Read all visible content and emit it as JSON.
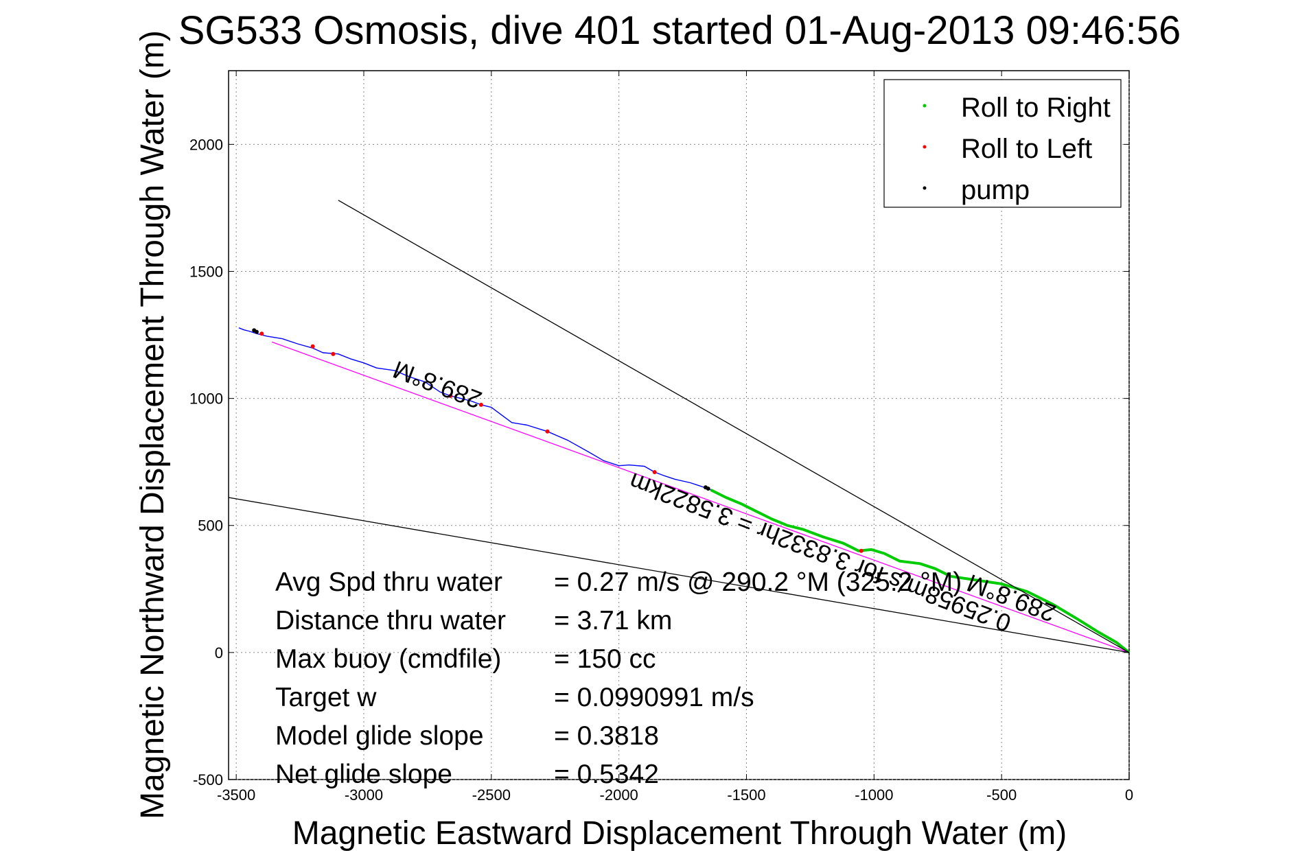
{
  "chart_data": {
    "type": "line",
    "title": "SG533 Osmosis, dive 401 started 01-Aug-2013 09:46:56",
    "xlabel": "Magnetic Eastward Displacement Through Water (m)",
    "ylabel": "Magnetic Northward Displacement Through Water (m)",
    "xlim": [
      -3530,
      0
    ],
    "ylim": [
      -500,
      2290
    ],
    "xticks": [
      -3500,
      -3000,
      -2500,
      -2000,
      -1500,
      -1000,
      -500,
      0
    ],
    "yticks": [
      -500,
      0,
      500,
      1000,
      1500,
      2000
    ],
    "xtick_labels": [
      "-3500",
      "-3000",
      "-2500",
      "-2000",
      "-1500",
      "-1000",
      "-500",
      "0"
    ],
    "ytick_labels": [
      "-500",
      "0",
      "500",
      "1000",
      "1500",
      "2000"
    ],
    "grid": true,
    "legend_position": "top-right",
    "legend": [
      {
        "label": "Roll to Right",
        "color": "#00cc00"
      },
      {
        "label": "Roll to Left",
        "color": "#ff0000"
      },
      {
        "label": "pump",
        "color": "#000000"
      }
    ],
    "series": [
      {
        "color": "#0000ff",
        "style": "line",
        "x": [
          0,
          -50,
          -120,
          -200,
          -300,
          -400,
          -500,
          -600,
          -700,
          -760,
          -820,
          -900,
          -960,
          -1010,
          -1060,
          -1120,
          -1200,
          -1280,
          -1340,
          -1400,
          -1460,
          -1520,
          -1580,
          -1640,
          -1680,
          -1720,
          -1780,
          -1820,
          -1860,
          -1900,
          -1960,
          -2000,
          -2060,
          -2120,
          -2200,
          -2280,
          -2360,
          -2420,
          -2460,
          -2500,
          -2540,
          -2580,
          -2620,
          -2660,
          -2700,
          -2760,
          -2820,
          -2880,
          -2950,
          -3000,
          -3050,
          -3100,
          -3160,
          -3200,
          -3260,
          -3320,
          -3380,
          -3420,
          -3450,
          -3470,
          -3490
        ],
        "y": [
          0,
          40,
          80,
          130,
          190,
          240,
          270,
          285,
          300,
          330,
          350,
          360,
          390,
          405,
          400,
          430,
          455,
          485,
          500,
          525,
          555,
          585,
          610,
          640,
          655,
          668,
          682,
          695,
          710,
          733,
          738,
          735,
          755,
          790,
          835,
          870,
          895,
          905,
          935,
          965,
          975,
          990,
          1000,
          1010,
          1025,
          1065,
          1085,
          1110,
          1120,
          1140,
          1155,
          1175,
          1180,
          1198,
          1215,
          1235,
          1245,
          1255,
          1265,
          1270,
          1278
        ]
      },
      {
        "name": "Roll to Right",
        "color": "#00cc00",
        "style": "line",
        "x": [
          0,
          -50,
          -120,
          -200,
          -300,
          -400,
          -500,
          -600,
          -700,
          -760,
          -820,
          -900,
          -960,
          -1010,
          -1060,
          -1120,
          -1200,
          -1280,
          -1340,
          -1400,
          -1460,
          -1520,
          -1580,
          -1640
        ],
        "y": [
          0,
          40,
          80,
          130,
          190,
          240,
          270,
          285,
          300,
          330,
          350,
          360,
          390,
          405,
          400,
          430,
          455,
          485,
          500,
          525,
          555,
          585,
          610,
          640
        ]
      },
      {
        "name": "Roll to Left",
        "color": "#ff0000",
        "style": "points",
        "x": [
          -1050,
          -1860,
          -2280,
          -2540,
          -2660,
          -3120,
          -3200,
          -3400
        ],
        "y": [
          400,
          710,
          870,
          975,
          1010,
          1175,
          1205,
          1255
        ]
      },
      {
        "name": "pump",
        "color": "#000000",
        "style": "points",
        "x": [
          -1660,
          -1650,
          -3420,
          -3430
        ],
        "y": [
          650,
          645,
          1262,
          1268
        ]
      },
      {
        "color": "#ff00ff",
        "style": "line",
        "x": [
          0,
          -3360
        ],
        "y": [
          0,
          1222
        ]
      },
      {
        "color": "#000000",
        "style": "line",
        "x": [
          0,
          -3100
        ],
        "y": [
          0,
          1780
        ]
      },
      {
        "color": "#000000",
        "style": "line",
        "x": [
          0,
          -3530
        ],
        "y": [
          0,
          610
        ]
      }
    ],
    "annotations": [
      {
        "text": "289.8°M",
        "x": -2700,
        "y": 1085,
        "rotate_deg": 200.8
      },
      {
        "text": "0.25958m/s for 3.8332hr = 3.5822km",
        "x": -1200,
        "y": 425,
        "rotate_deg": 200.8
      },
      {
        "text": "289.8°M",
        "x": -450,
        "y": 245,
        "rotate_deg": 200.8
      }
    ],
    "stats": [
      {
        "label": "Avg Spd thru water",
        "value": "=  0.27 m/s @ 290.2 °M (325.2 °M)"
      },
      {
        "label": "Distance thru water",
        "value": "=  3.71 km"
      },
      {
        "label": "Max buoy (cmdfile)",
        "value": "= 150 cc"
      },
      {
        "label": "Target w",
        "value": "= 0.0990991 m/s"
      },
      {
        "label": "Model glide slope",
        "value": "= 0.3818"
      },
      {
        "label": "Net glide slope",
        "value": "= 0.5342"
      }
    ]
  }
}
